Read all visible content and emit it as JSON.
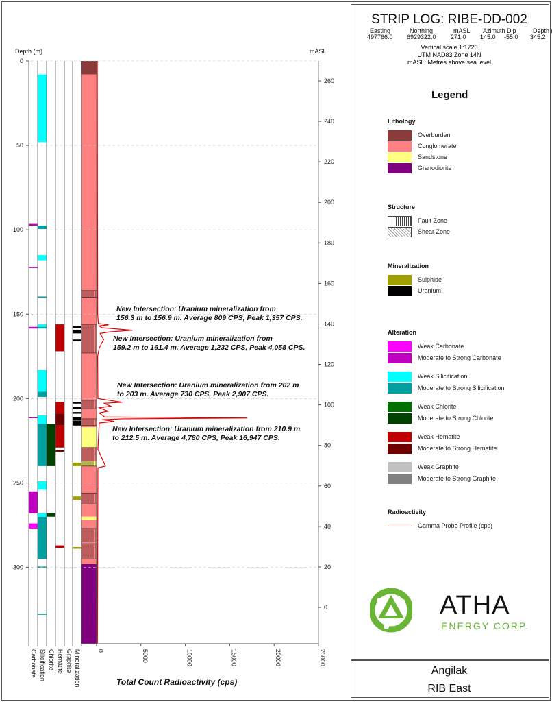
{
  "header": {
    "title": "STRIP LOG: RIBE-DD-002",
    "collar_headers": [
      "Easting",
      "Northing",
      "mASL",
      "Azimuth",
      "Dip",
      "Depth (m)"
    ],
    "collar_values": [
      "497766.0",
      "6929322.0",
      "271.0",
      "145.0",
      "-55.0",
      "345.2"
    ],
    "notes": [
      "Vertical scale 1:1720",
      "UTM NAD83 Zone 14N",
      "mASL: Metres above sea level"
    ]
  },
  "legend": {
    "title": "Legend",
    "groups": [
      {
        "title": "Lithology",
        "items": [
          {
            "label": "Overburden",
            "color": "#8b3a3a"
          },
          {
            "label": "Conglomerate",
            "color": "#ff8080"
          },
          {
            "label": "Sandstone",
            "color": "#ffff80"
          },
          {
            "label": "Granodiorite",
            "color": "#800080"
          }
        ]
      },
      {
        "title": "Structure",
        "items": [
          {
            "label": "Fault Zone",
            "pattern": "vertical-lines"
          },
          {
            "label": "Shear Zone",
            "pattern": "crosshatch"
          }
        ]
      },
      {
        "title": "Mineralization",
        "items": [
          {
            "label": "Sulphide",
            "color": "#a0a000"
          },
          {
            "label": "Uranium",
            "color": "#000000"
          }
        ]
      },
      {
        "title": "Alteration",
        "items": [
          {
            "label": "Weak Carbonate",
            "color": "#ff00ff"
          },
          {
            "label": "Moderate to Strong Carbonate",
            "color": "#c000c0"
          },
          {
            "label": "Weak Silicification",
            "color": "#00ffff"
          },
          {
            "label": "Moderate to Strong Silicification",
            "color": "#00a0a0"
          },
          {
            "label": "Weak Chlorite",
            "color": "#007000"
          },
          {
            "label": "Moderate to Strong Chlorite",
            "color": "#004000"
          },
          {
            "label": "Weak Hematite",
            "color": "#c00000"
          },
          {
            "label": "Moderate to Strong Hematite",
            "color": "#700000"
          },
          {
            "label": "Weak Graphite",
            "color": "#c0c0c0"
          },
          {
            "label": "Moderate to Strong Graphite",
            "color": "#808080"
          }
        ]
      },
      {
        "title": "Radioactivity",
        "items": [
          {
            "label": "Gamma Probe Profile (cps)",
            "line": "#e06060"
          }
        ]
      }
    ]
  },
  "logo": {
    "name": "ATHA",
    "sub": "ENERGY CORP.",
    "color": "#6ab536"
  },
  "footer": {
    "project": "Angilak",
    "area": "RIB East"
  },
  "chart_data": {
    "type": "strip-log",
    "depth_axis": {
      "label": "Depth (m)",
      "range": [
        0,
        345.2
      ],
      "ticks": [
        0,
        50,
        100,
        150,
        200,
        250,
        300
      ]
    },
    "masl_axis": {
      "label": "mASL",
      "ticks": [
        260,
        240,
        220,
        200,
        180,
        160,
        140,
        120,
        100,
        80,
        60,
        40,
        20,
        0
      ]
    },
    "x_axis": {
      "label": "Total Count Radioactivity (cps)",
      "range": [
        0,
        25000
      ],
      "ticks": [
        0,
        5000,
        10000,
        15000,
        20000,
        25000
      ]
    },
    "columns": [
      "Carbonate",
      "Silicification",
      "Chlorite",
      "Hematite",
      "Graphite",
      "Mineralization"
    ],
    "lithology": [
      {
        "from": 0,
        "to": 8,
        "unit": "Overburden"
      },
      {
        "from": 8,
        "to": 217,
        "unit": "Conglomerate"
      },
      {
        "from": 217,
        "to": 229,
        "unit": "Sandstone"
      },
      {
        "from": 229,
        "to": 237,
        "unit": "Conglomerate"
      },
      {
        "from": 237,
        "to": 240,
        "unit": "Sandstone"
      },
      {
        "from": 240,
        "to": 270,
        "unit": "Conglomerate"
      },
      {
        "from": 270,
        "to": 272,
        "unit": "Sandstone"
      },
      {
        "from": 272,
        "to": 298,
        "unit": "Conglomerate"
      },
      {
        "from": 298,
        "to": 345.2,
        "unit": "Granodiorite"
      }
    ],
    "fault_zones": [
      [
        136,
        140
      ],
      [
        156,
        173
      ],
      [
        201,
        206
      ],
      [
        212,
        216
      ],
      [
        229,
        240
      ],
      [
        256,
        262
      ],
      [
        277,
        285
      ],
      [
        286,
        295
      ]
    ],
    "mineralization": [
      {
        "from": 157,
        "to": 158,
        "type": "Uranium"
      },
      {
        "from": 159.2,
        "to": 161.4,
        "type": "Uranium"
      },
      {
        "from": 165,
        "to": 166,
        "type": "Uranium"
      },
      {
        "from": 202,
        "to": 203,
        "type": "Uranium"
      },
      {
        "from": 205,
        "to": 206,
        "type": "Uranium"
      },
      {
        "from": 208,
        "to": 209,
        "type": "Uranium"
      },
      {
        "from": 210.9,
        "to": 212.5,
        "type": "Uranium"
      },
      {
        "from": 213,
        "to": 216,
        "type": "Uranium"
      },
      {
        "from": 238,
        "to": 240,
        "type": "Sulphide"
      },
      {
        "from": 258,
        "to": 260,
        "type": "Sulphide"
      },
      {
        "from": 288,
        "to": 289,
        "type": "Sulphide"
      }
    ],
    "carbonate": [
      {
        "from": 96.5,
        "to": 97.5,
        "grade": "Moderate"
      },
      {
        "from": 122,
        "to": 122.6,
        "grade": "Moderate"
      },
      {
        "from": 157.5,
        "to": 158.5,
        "grade": "Moderate"
      },
      {
        "from": 211,
        "to": 211.5,
        "grade": "Moderate"
      },
      {
        "from": 255,
        "to": 268,
        "grade": "Moderate"
      },
      {
        "from": 274,
        "to": 277,
        "grade": "Weak"
      }
    ],
    "silicification": [
      {
        "from": 8,
        "to": 48,
        "grade": "Weak"
      },
      {
        "from": 97.5,
        "to": 99.5,
        "grade": "Moderate"
      },
      {
        "from": 115,
        "to": 118,
        "grade": "Weak"
      },
      {
        "from": 139.5,
        "to": 140,
        "grade": "Moderate"
      },
      {
        "from": 156,
        "to": 157.5,
        "grade": "Weak"
      },
      {
        "from": 157.5,
        "to": 158.5,
        "grade": "Moderate"
      },
      {
        "from": 183,
        "to": 196,
        "grade": "Weak"
      },
      {
        "from": 196,
        "to": 199,
        "grade": "Moderate"
      },
      {
        "from": 210,
        "to": 215,
        "grade": "Weak"
      },
      {
        "from": 215,
        "to": 240,
        "grade": "Moderate"
      },
      {
        "from": 249,
        "to": 254,
        "grade": "Weak"
      },
      {
        "from": 268,
        "to": 270,
        "grade": "Weak"
      },
      {
        "from": 270,
        "to": 295,
        "grade": "Moderate"
      },
      {
        "from": 299.5,
        "to": 300.2,
        "grade": "Moderate"
      },
      {
        "from": 327.5,
        "to": 328,
        "grade": "Moderate"
      }
    ],
    "chlorite": [
      {
        "from": 215,
        "to": 240,
        "grade": "Moderate"
      },
      {
        "from": 268,
        "to": 270,
        "grade": "Moderate"
      }
    ],
    "hematite": [
      {
        "from": 156,
        "to": 172,
        "grade": "Weak"
      },
      {
        "from": 202,
        "to": 209,
        "grade": "Weak"
      },
      {
        "from": 209,
        "to": 216,
        "grade": "Moderate"
      },
      {
        "from": 216,
        "to": 229,
        "grade": "Weak"
      },
      {
        "from": 230.5,
        "to": 231.5,
        "grade": "Moderate"
      },
      {
        "from": 287,
        "to": 288.5,
        "grade": "Weak"
      }
    ],
    "gamma": [
      [
        0,
        80
      ],
      [
        150,
        120
      ],
      [
        155.5,
        200
      ],
      [
        156.3,
        1357
      ],
      [
        156.9,
        300
      ],
      [
        158,
        600
      ],
      [
        159.5,
        4058
      ],
      [
        160.5,
        1500
      ],
      [
        161.4,
        400
      ],
      [
        165,
        800
      ],
      [
        170,
        300
      ],
      [
        175,
        120
      ],
      [
        200,
        150
      ],
      [
        202.2,
        2907
      ],
      [
        202.8,
        800
      ],
      [
        204.5,
        1600
      ],
      [
        205.5,
        300
      ],
      [
        207.5,
        1300
      ],
      [
        208.5,
        300
      ],
      [
        210.9,
        900
      ],
      [
        211.5,
        16947
      ],
      [
        212,
        3000
      ],
      [
        212.5,
        600
      ],
      [
        213.5,
        2000
      ],
      [
        214.5,
        300
      ],
      [
        230,
        150
      ],
      [
        240,
        1000
      ],
      [
        241,
        150
      ],
      [
        345,
        100
      ]
    ],
    "annotations": [
      {
        "line1": "New Intersection: Uranium mineralization from",
        "line2": "156.3 m to 156.9 m. Average 809 CPS, Peak 1,357 CPS."
      },
      {
        "line1": "New Intersection: Uranium mineralization from",
        "line2": "159.2 m to 161.4 m. Average 1,232 CPS, Peak 4,058 CPS."
      },
      {
        "line1": "New Intersection: Uranium mineralization from 202 m",
        "line2": "to 203 m. Average 730 CPS, Peak 2,907 CPS."
      },
      {
        "line1": "New Intersection: Uranium mineralization from 210.9 m",
        "line2": "to 212.5 m. Average 4,780 CPS, Peak 16,947 CPS."
      }
    ]
  }
}
